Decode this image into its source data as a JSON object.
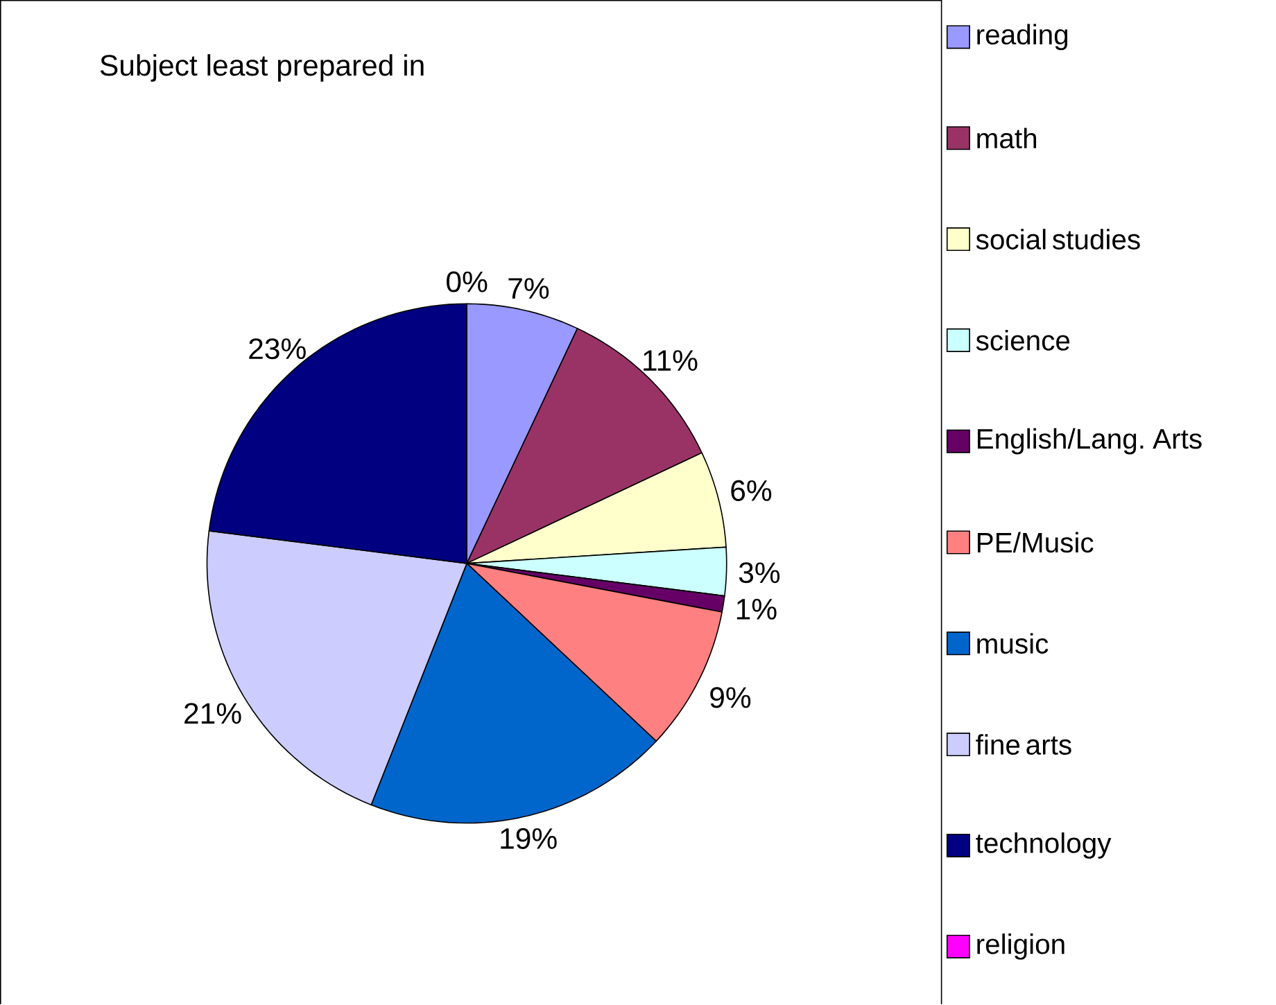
{
  "chart_data": {
    "type": "pie",
    "title": "Subject least prepared in",
    "categories": [
      "reading",
      "math",
      "social studies",
      "science",
      "English/Lang. Arts",
      "PE/Music",
      "music",
      "fine arts",
      "technology",
      "religion"
    ],
    "values": [
      7,
      11,
      6,
      3,
      1,
      9,
      19,
      21,
      23,
      0
    ],
    "value_labels": [
      "7%",
      "11%",
      "6%",
      "3%",
      "1%",
      "9%",
      "19%",
      "21%",
      "23%",
      "0%"
    ],
    "colors": [
      "#9999ff",
      "#993366",
      "#ffffcc",
      "#ccffff",
      "#660066",
      "#ff8080",
      "#0066cc",
      "#ccccff",
      "#000080",
      "#ff00ff"
    ],
    "legend": "right"
  }
}
